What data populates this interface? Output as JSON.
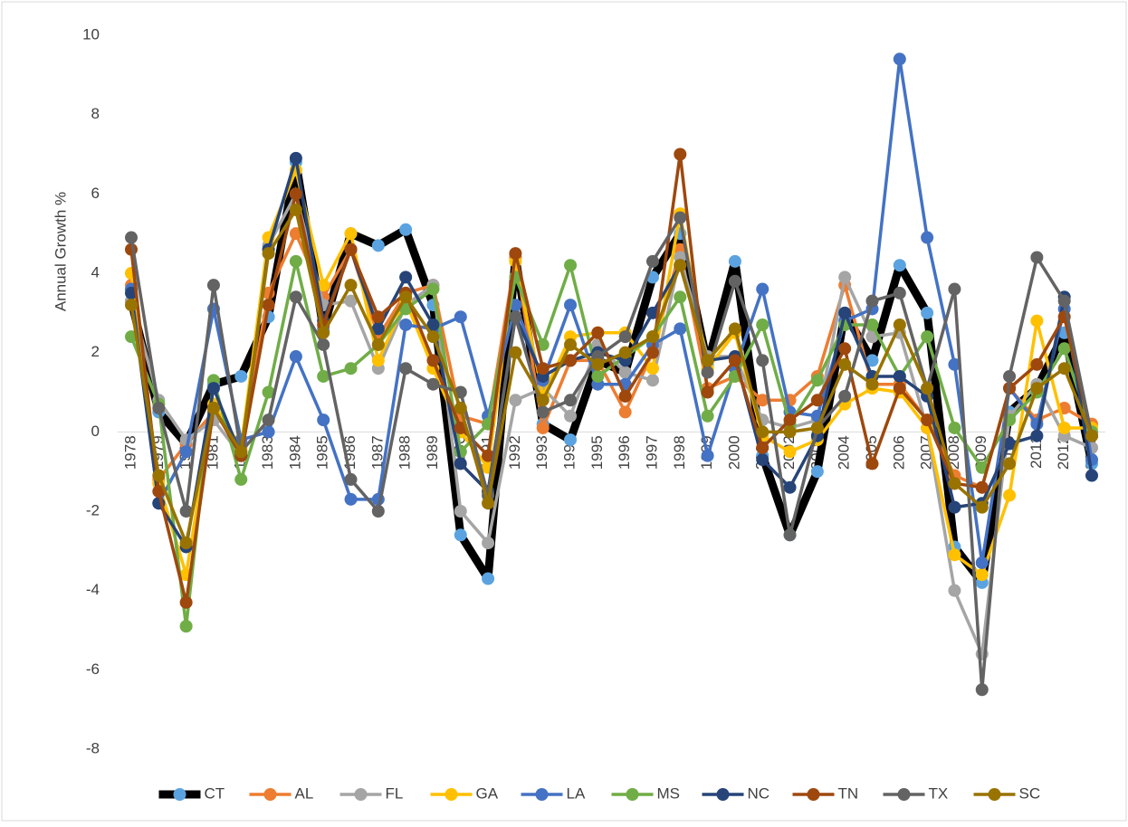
{
  "chart_data": {
    "type": "line",
    "y_label": "Annual Growth %",
    "categories": [
      "1978",
      "1979",
      "1980",
      "1981",
      "1982",
      "1983",
      "1984",
      "1985",
      "1986",
      "1987",
      "1988",
      "1989",
      "1990",
      "1991",
      "1992",
      "1993",
      "1994",
      "1995",
      "1996",
      "1997",
      "1998",
      "1999",
      "2000",
      "2001",
      "2002",
      "2003",
      "2004",
      "2005",
      "2006",
      "2007",
      "2008",
      "2009",
      "2010",
      "2011",
      "2012",
      "2013"
    ],
    "ylim": [
      -8,
      10
    ],
    "yticks": [
      -8,
      -6,
      -4,
      -2,
      0,
      2,
      4,
      6,
      8,
      10
    ],
    "grid": false,
    "legend": "bottom",
    "series": [
      {
        "name": "CT",
        "color": "#000000",
        "marker_color": "#5ba3e0",
        "values": [
          3.3,
          0.5,
          -0.3,
          1.2,
          1.4,
          2.9,
          6.8,
          2.6,
          5.0,
          4.7,
          5.1,
          3.2,
          -2.6,
          -3.7,
          4.4,
          0.2,
          -0.2,
          1.8,
          1.5,
          3.9,
          5.0,
          1.7,
          4.3,
          -0.6,
          -2.6,
          -1.0,
          3.0,
          1.8,
          4.2,
          3.0,
          -2.9,
          -3.8,
          0.5,
          1.1,
          2.5,
          -0.8
        ]
      },
      {
        "name": "AL",
        "color": "#ed7d31",
        "values": [
          3.7,
          -1.2,
          -0.3,
          0.5,
          -0.4,
          3.5,
          5.0,
          3.4,
          4.6,
          2.4,
          3.5,
          3.7,
          0.4,
          0.2,
          4.4,
          0.1,
          1.8,
          1.8,
          0.5,
          2.0,
          4.6,
          1.1,
          1.4,
          0.8,
          0.8,
          1.4,
          3.7,
          1.2,
          1.2,
          0.3,
          -1.1,
          -1.4,
          1.1,
          0.3,
          0.6,
          0.2
        ]
      },
      {
        "name": "FL",
        "color": "#a5a5a5",
        "values": [
          3.3,
          0.8,
          -0.2,
          0.3,
          -0.6,
          4.7,
          6.0,
          3.2,
          3.3,
          1.6,
          3.2,
          3.7,
          -2.0,
          -2.8,
          0.8,
          1.1,
          0.4,
          2.2,
          1.5,
          1.3,
          4.4,
          1.9,
          1.9,
          0.3,
          0.1,
          0.3,
          3.9,
          2.4,
          2.5,
          0.1,
          -4.0,
          -5.6,
          0.4,
          1.2,
          -0.1,
          -0.4
        ]
      },
      {
        "name": "GA",
        "color": "#ffc000",
        "values": [
          4.0,
          -1.3,
          -3.6,
          0.7,
          -0.4,
          4.9,
          6.6,
          3.7,
          5.0,
          1.8,
          3.3,
          1.6,
          0.0,
          -0.9,
          4.3,
          0.9,
          2.4,
          2.5,
          2.5,
          1.6,
          5.5,
          1.6,
          2.5,
          -0.1,
          -0.5,
          -0.2,
          0.7,
          1.1,
          1.0,
          0.1,
          -3.1,
          -3.6,
          -1.6,
          2.8,
          0.1,
          0.1
        ]
      },
      {
        "name": "LA",
        "color": "#4472c4",
        "values": [
          3.6,
          -1.8,
          -0.5,
          3.1,
          -0.2,
          0.0,
          1.9,
          0.3,
          -1.7,
          -1.7,
          2.7,
          2.6,
          2.9,
          0.4,
          3.2,
          1.3,
          3.2,
          1.2,
          1.2,
          2.2,
          2.6,
          -0.6,
          1.6,
          3.6,
          0.5,
          0.4,
          2.8,
          3.1,
          9.4,
          4.9,
          1.7,
          -3.3,
          1.1,
          0.2,
          3.1,
          -0.7
        ]
      },
      {
        "name": "MS",
        "color": "#70ad47",
        "values": [
          2.4,
          0.7,
          -4.9,
          1.3,
          -1.2,
          1.0,
          4.3,
          1.4,
          1.6,
          2.2,
          3.1,
          3.6,
          -0.5,
          0.2,
          3.9,
          2.2,
          4.2,
          1.4,
          1.9,
          2.4,
          3.4,
          0.4,
          1.4,
          2.7,
          0.2,
          1.3,
          2.7,
          2.7,
          1.4,
          2.4,
          0.1,
          -0.9,
          0.3,
          1.0,
          2.1,
          0.0
        ]
      },
      {
        "name": "NC",
        "color": "#264478",
        "values": [
          3.5,
          -1.8,
          -2.9,
          1.1,
          -0.6,
          4.6,
          6.9,
          2.8,
          4.6,
          2.6,
          3.9,
          2.7,
          -0.8,
          -1.5,
          2.9,
          1.4,
          1.8,
          2.0,
          1.8,
          3.0,
          4.2,
          1.8,
          1.9,
          -0.7,
          -1.4,
          -0.1,
          3.0,
          1.4,
          1.4,
          0.9,
          -1.9,
          -1.8,
          -0.3,
          -0.1,
          3.4,
          -1.1
        ]
      },
      {
        "name": "TN",
        "color": "#9e480e",
        "values": [
          4.6,
          -1.5,
          -4.3,
          0.6,
          -0.6,
          3.2,
          6.0,
          2.7,
          4.6,
          2.9,
          3.5,
          1.8,
          0.1,
          -0.6,
          4.5,
          1.6,
          1.8,
          2.5,
          0.9,
          2.0,
          7.0,
          1.0,
          1.8,
          -0.4,
          0.3,
          0.8,
          2.1,
          -0.8,
          1.1,
          0.3,
          -1.3,
          -1.4,
          1.1,
          1.7,
          2.9,
          -0.1
        ]
      },
      {
        "name": "TX",
        "color": "#636363",
        "values": [
          4.9,
          0.6,
          -2.0,
          3.7,
          -0.5,
          0.3,
          3.4,
          2.2,
          -1.2,
          -2.0,
          1.6,
          1.2,
          1.0,
          -1.6,
          2.9,
          0.5,
          0.8,
          1.9,
          2.4,
          4.3,
          5.4,
          1.5,
          3.8,
          1.8,
          -2.6,
          0.1,
          0.9,
          3.3,
          3.5,
          1.1,
          3.6,
          -6.5,
          1.4,
          4.4,
          3.3,
          -0.1
        ]
      },
      {
        "name": "SC",
        "color": "#997300",
        "values": [
          3.2,
          -1.1,
          -2.8,
          0.6,
          -0.5,
          4.5,
          5.6,
          2.5,
          3.7,
          2.2,
          3.4,
          2.4,
          0.6,
          -1.8,
          2.0,
          0.8,
          2.2,
          1.7,
          2.0,
          2.4,
          4.2,
          1.8,
          2.6,
          0.0,
          0.0,
          0.1,
          1.7,
          1.2,
          2.7,
          1.1,
          -1.3,
          -1.9,
          -0.8,
          1.1,
          1.6,
          -0.1
        ]
      }
    ]
  }
}
